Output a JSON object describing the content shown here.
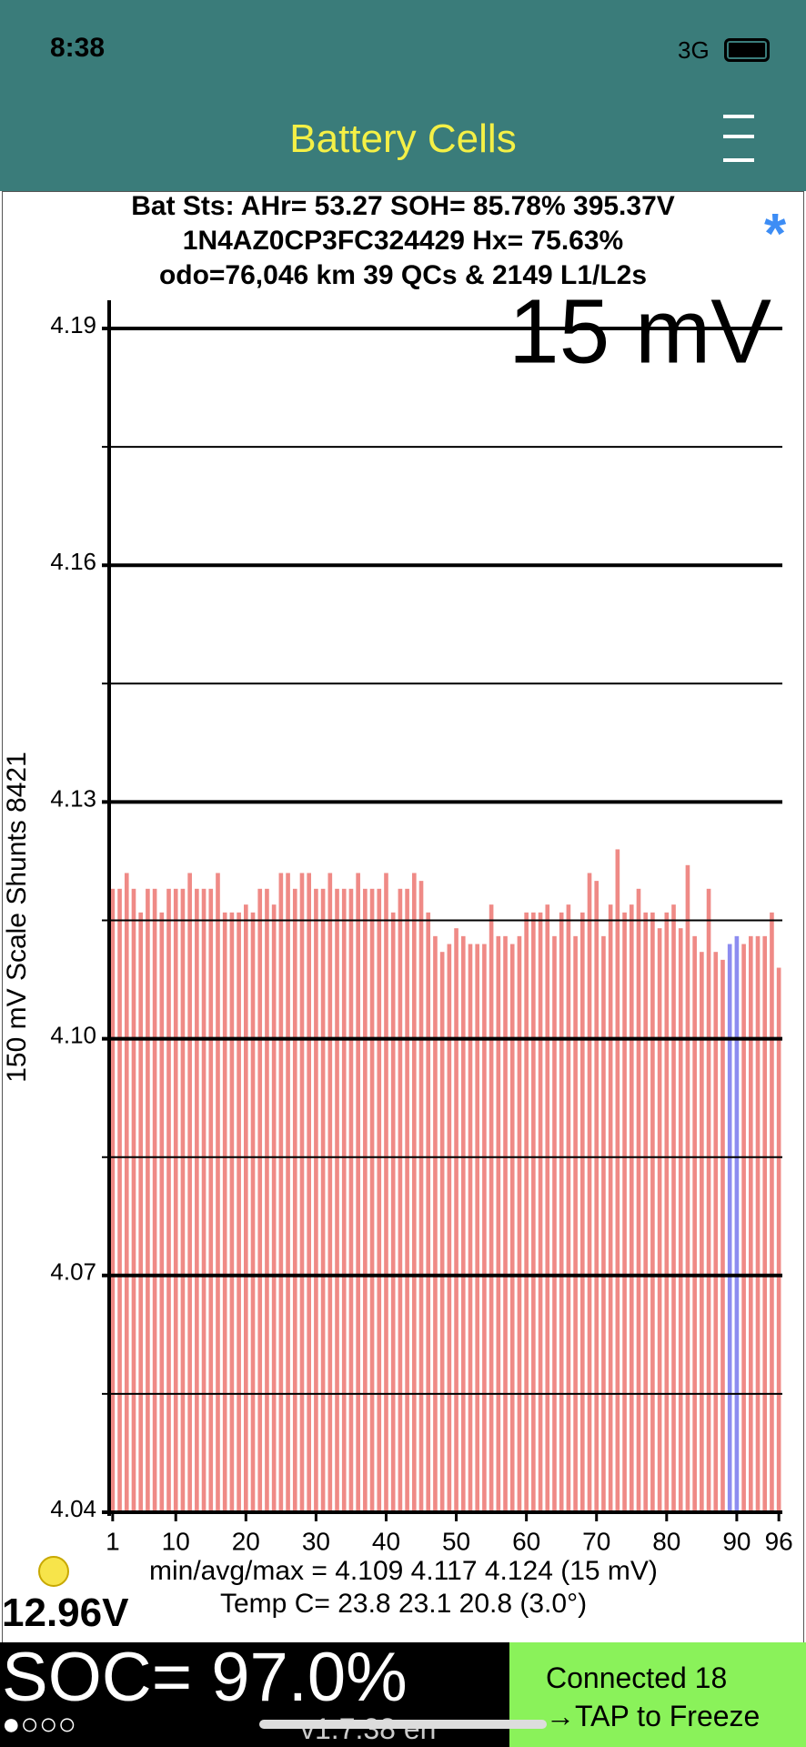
{
  "status_bar": {
    "time": "8:38",
    "network": "3G"
  },
  "header": {
    "title": "Battery Cells"
  },
  "info": {
    "lines": [
      "Bat Sts: AHr= 53.27 SOH= 85.78% 395.37V",
      "1N4AZ0CP3FC324429   Hx= 75.63%",
      "odo=76,046 km 39 QCs & 2149 L1/L2s"
    ],
    "mark": "*"
  },
  "chart_data": {
    "type": "bar",
    "scale_label": "15 mV",
    "y_label": "150 mV Scale   Shunts 8421",
    "x": [
      1,
      2,
      3,
      4,
      5,
      6,
      7,
      8,
      9,
      10,
      11,
      12,
      13,
      14,
      15,
      16,
      17,
      18,
      19,
      20,
      21,
      22,
      23,
      24,
      25,
      26,
      27,
      28,
      29,
      30,
      31,
      32,
      33,
      34,
      35,
      36,
      37,
      38,
      39,
      40,
      41,
      42,
      43,
      44,
      45,
      46,
      47,
      48,
      49,
      50,
      51,
      52,
      53,
      54,
      55,
      56,
      57,
      58,
      59,
      60,
      61,
      62,
      63,
      64,
      65,
      66,
      67,
      68,
      69,
      70,
      71,
      72,
      73,
      74,
      75,
      76,
      77,
      78,
      79,
      80,
      81,
      82,
      83,
      84,
      85,
      86,
      87,
      88,
      89,
      90,
      91,
      92,
      93,
      94,
      95,
      96
    ],
    "values": [
      4.119,
      4.119,
      4.121,
      4.119,
      4.116,
      4.119,
      4.119,
      4.116,
      4.119,
      4.119,
      4.119,
      4.121,
      4.119,
      4.119,
      4.119,
      4.121,
      4.116,
      4.116,
      4.116,
      4.117,
      4.116,
      4.119,
      4.119,
      4.117,
      4.121,
      4.121,
      4.119,
      4.121,
      4.121,
      4.119,
      4.119,
      4.121,
      4.119,
      4.119,
      4.119,
      4.121,
      4.119,
      4.119,
      4.119,
      4.121,
      4.116,
      4.119,
      4.119,
      4.121,
      4.12,
      4.116,
      4.113,
      4.111,
      4.112,
      4.114,
      4.113,
      4.112,
      4.112,
      4.112,
      4.117,
      4.113,
      4.113,
      4.112,
      4.113,
      4.116,
      4.116,
      4.116,
      4.117,
      4.113,
      4.116,
      4.117,
      4.113,
      4.116,
      4.121,
      4.12,
      4.113,
      4.117,
      4.124,
      4.116,
      4.117,
      4.119,
      4.116,
      4.116,
      4.114,
      4.116,
      4.117,
      4.114,
      4.122,
      4.113,
      4.111,
      4.119,
      4.111,
      4.11,
      4.112,
      4.113,
      4.112,
      4.113,
      4.113,
      4.113,
      4.116,
      4.109
    ],
    "color": "#ef8a86",
    "highlight_x": [
      89,
      90
    ],
    "highlight_color": "#8c8cf0",
    "xlim": [
      0.5,
      96.5
    ],
    "xticks": [
      1,
      10,
      20,
      30,
      40,
      50,
      60,
      70,
      80,
      90,
      96
    ],
    "ylim": [
      4.04,
      4.19
    ],
    "yticks": [
      4.04,
      4.07,
      {
        "value": 4.1,
        "label": "4.10"
      },
      4.13,
      4.16,
      4.19
    ],
    "minor_yticks": [
      4.055,
      4.085,
      4.115,
      4.145,
      4.175
    ],
    "grid": true
  },
  "stats": [
    "min/avg/max = 4.109 4.117 4.124  (15 mV)",
    "Temp C= 23.8  23.1  20.8  (3.0°)"
  ],
  "footer": {
    "aux_voltage": "12.96V",
    "soc": "SOC= 97.0%",
    "dots": "●○○○",
    "version": "v1.7.38 en",
    "status": [
      "Connected 18",
      "→TAP to Freeze"
    ]
  }
}
